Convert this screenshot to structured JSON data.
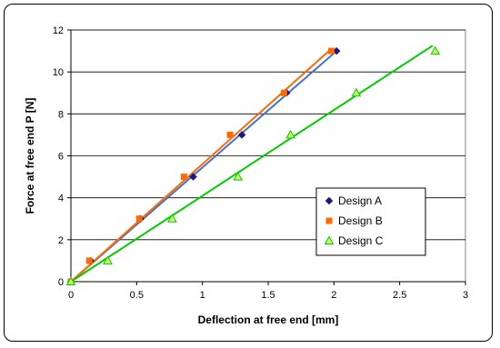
{
  "chart_data": {
    "type": "scatter",
    "title": "",
    "xlabel": "Deflection at free end [mm]",
    "ylabel": "Force at free end P [N]",
    "xlim": [
      0,
      3
    ],
    "ylim": [
      0,
      12
    ],
    "xticks": [
      0,
      0.5,
      1,
      1.5,
      2,
      2.5,
      3
    ],
    "xtick_labels": [
      "0",
      "0.5",
      "1",
      "1.5",
      "2",
      "2.5",
      "3"
    ],
    "yticks": [
      0,
      2,
      4,
      6,
      8,
      10,
      12
    ],
    "ytick_labels": [
      "0",
      "2",
      "4",
      "6",
      "8",
      "10",
      "12"
    ],
    "grid": "horizontal",
    "legend_position": "lower-right",
    "series": [
      {
        "name": "Design A",
        "color": "#1a1a80",
        "trend_color": "#4472c4",
        "marker": "diamond",
        "points": [
          [
            0,
            0
          ],
          [
            0.15,
            1
          ],
          [
            0.53,
            3
          ],
          [
            0.93,
            5
          ],
          [
            1.3,
            7
          ],
          [
            1.64,
            9
          ],
          [
            2.02,
            11
          ]
        ],
        "trendline": [
          [
            0,
            0
          ],
          [
            2.02,
            11
          ]
        ]
      },
      {
        "name": "Design B",
        "color": "#ff6a00",
        "trend_color": "#ff6a00",
        "marker": "square",
        "points": [
          [
            0,
            0
          ],
          [
            0.14,
            1
          ],
          [
            0.52,
            3
          ],
          [
            0.86,
            5
          ],
          [
            1.21,
            7
          ],
          [
            1.62,
            9
          ],
          [
            1.98,
            11
          ]
        ],
        "trendline": [
          [
            0,
            0
          ],
          [
            1.98,
            11.1
          ]
        ]
      },
      {
        "name": "Design C",
        "color": "#00cc00",
        "trend_color": "#00cc00",
        "marker": "triangle",
        "points": [
          [
            0,
            0
          ],
          [
            0.28,
            1
          ],
          [
            0.77,
            3
          ],
          [
            1.27,
            5
          ],
          [
            1.67,
            7
          ],
          [
            2.17,
            9
          ],
          [
            2.77,
            11
          ]
        ],
        "trendline": [
          [
            0,
            0
          ],
          [
            2.75,
            11.25
          ]
        ]
      }
    ]
  }
}
